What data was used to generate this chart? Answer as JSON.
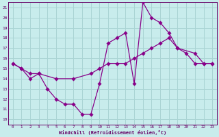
{
  "xlabel": "Windchill (Refroidissement éolien,°C)",
  "xlim": [
    -0.5,
    23.5
  ],
  "ylim": [
    9.5,
    21.5
  ],
  "yticks": [
    10,
    11,
    12,
    13,
    14,
    15,
    16,
    17,
    18,
    19,
    20,
    21
  ],
  "xticks": [
    0,
    1,
    2,
    3,
    4,
    5,
    6,
    7,
    8,
    9,
    10,
    11,
    12,
    13,
    14,
    15,
    16,
    17,
    18,
    19,
    20,
    21,
    22,
    23
  ],
  "bg_color": "#c8ecec",
  "grid_color": "#aad4d4",
  "line_color": "#880088",
  "line1_x": [
    0,
    1,
    2,
    3,
    4,
    5,
    6,
    7,
    8,
    9,
    10,
    11,
    12,
    13,
    14,
    15,
    16,
    17,
    18,
    19,
    20,
    21,
    22,
    23
  ],
  "line1_y": [
    15.5,
    15.0,
    14.0,
    14.5,
    13.0,
    12.0,
    11.5,
    11.5,
    10.5,
    10.5,
    13.5,
    17.5,
    18.0,
    18.5,
    13.5,
    21.5,
    20.0,
    19.5,
    18.5,
    17.0,
    16.5,
    15.5,
    15.5,
    15.5
  ],
  "line2_x": [
    0,
    1,
    2,
    3,
    5,
    7,
    9,
    10,
    11,
    12,
    13,
    14,
    15,
    16,
    17,
    18,
    19,
    21,
    22,
    23
  ],
  "line2_y": [
    15.5,
    15.0,
    14.5,
    14.5,
    14.0,
    14.0,
    14.5,
    15.0,
    15.5,
    15.5,
    15.5,
    16.0,
    16.5,
    17.0,
    17.5,
    18.0,
    17.0,
    16.5,
    15.5,
    15.5
  ]
}
